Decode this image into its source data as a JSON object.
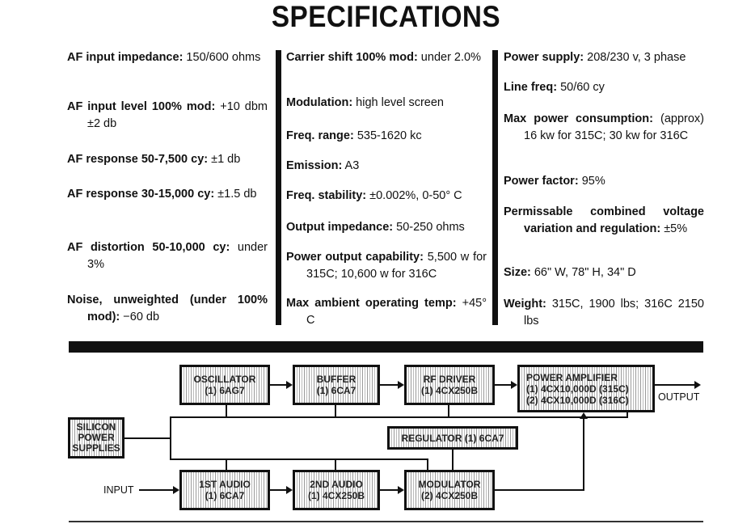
{
  "title": "SPECIFICATIONS",
  "columns": [
    [
      {
        "label": "AF input impedance:",
        "value": " 150/600 ohms"
      },
      {
        "label": "AF input level 100% mod:",
        "value": " +10 dbm ±2 db"
      },
      {
        "label": "AF response 50-7,500 cy:",
        "value": " ±1 db"
      },
      {
        "label": "AF response 30-15,000 cy:",
        "value": " ±1.5 db"
      },
      {
        "label": "AF distortion 50-10,000 cy:",
        "value": " under 3%"
      },
      {
        "label": "Noise, unweighted (under 100% mod):",
        "value": " −60 db"
      }
    ],
    [
      {
        "label": "Carrier shift 100% mod:",
        "value": " under 2.0%"
      },
      {
        "label": "Modulation:",
        "value": " high level screen"
      },
      {
        "label": "Freq. range:",
        "value": " 535-1620 kc"
      },
      {
        "label": "Emission:",
        "value": " A3"
      },
      {
        "label": "Freq. stability:",
        "value": " ±0.002%, 0-50° C"
      },
      {
        "label": "Output impedance:",
        "value": " 50-250 ohms"
      },
      {
        "label": "Power output capability:",
        "value": " 5,500 w for 315C; 10,600 w for 316C"
      },
      {
        "label": "Max ambient operating temp:",
        "value": " +45° C"
      }
    ],
    [
      {
        "label": "Power supply:",
        "value": " 208/230 v, 3 phase"
      },
      {
        "label": "Line freq:",
        "value": " 50/60 cy"
      },
      {
        "label": "Max power consumption:",
        "value": " (approx) 16 kw for 315C; 30 kw for 316C"
      },
      {
        "label": "Power factor:",
        "value": " 95%"
      },
      {
        "label": "Permissable combined voltage variation and regulation:",
        "value": " ±5%"
      },
      {
        "label": "Size:",
        "value": " 66\" W, 78\" H, 34\" D"
      },
      {
        "label": "Weight:",
        "value": " 315C, 1900 lbs; 316C 2150 lbs"
      }
    ]
  ],
  "diagram": {
    "oscillator": [
      "OSCILLATOR",
      "(1) 6AG7"
    ],
    "buffer": [
      "BUFFER",
      "(1) 6CA7"
    ],
    "rf_driver": [
      "RF DRIVER",
      "(1) 4CX250B"
    ],
    "power_amplifier": [
      "POWER AMPLIFIER",
      "(1) 4CX10,000D (315C)",
      "(2) 4CX10,000D (316C)"
    ],
    "silicon": [
      "SILICON",
      "POWER",
      "SUPPLIES"
    ],
    "regulator": [
      "REGULATOR (1) 6CA7"
    ],
    "audio1": [
      "1ST AUDIO",
      "(1) 6CA7"
    ],
    "audio2": [
      "2ND AUDIO",
      "(1) 4CX250B"
    ],
    "modulator": [
      "MODULATOR",
      "(2) 4CX250B"
    ],
    "input_label": "INPUT",
    "output_label": "OUTPUT"
  }
}
